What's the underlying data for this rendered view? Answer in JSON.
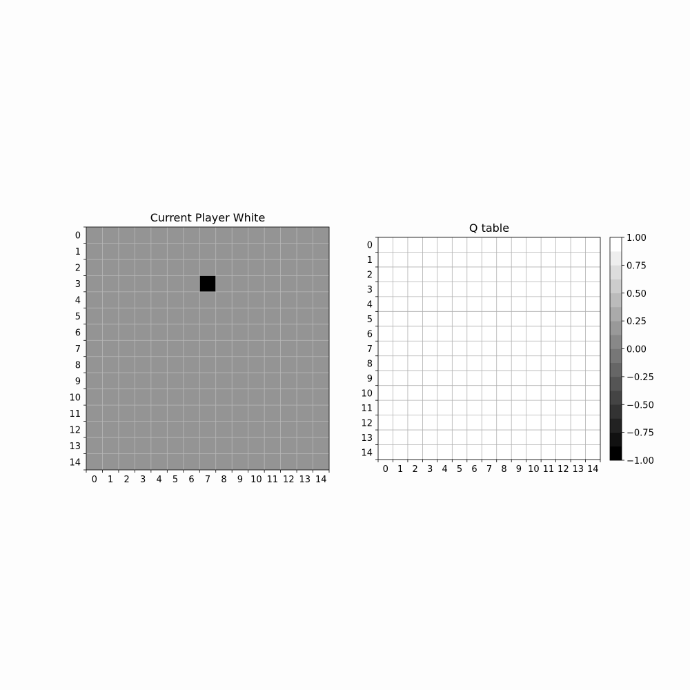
{
  "chart_data": [
    {
      "type": "heatmap",
      "title": "Current Player White",
      "rows": 15,
      "cols": 15,
      "xticks": [
        "0",
        "1",
        "2",
        "3",
        "4",
        "5",
        "6",
        "7",
        "8",
        "9",
        "10",
        "11",
        "12",
        "13",
        "14"
      ],
      "yticks": [
        "0",
        "1",
        "2",
        "3",
        "4",
        "5",
        "6",
        "7",
        "8",
        "9",
        "10",
        "11",
        "12",
        "13",
        "14"
      ],
      "background_value": 0,
      "background_color": "#949494",
      "stones": [
        {
          "row": 3,
          "col": 7,
          "color": "#000000"
        }
      ],
      "grid": true,
      "grid_color": "#b8b8b8"
    },
    {
      "type": "heatmap",
      "title": "Q table",
      "rows": 15,
      "cols": 15,
      "xticks": [
        "0",
        "1",
        "2",
        "3",
        "4",
        "5",
        "6",
        "7",
        "8",
        "9",
        "10",
        "11",
        "12",
        "13",
        "14"
      ],
      "yticks": [
        "0",
        "1",
        "2",
        "3",
        "4",
        "5",
        "6",
        "7",
        "8",
        "9",
        "10",
        "11",
        "12",
        "13",
        "14"
      ],
      "cell_value": 1.0,
      "cell_color": "#ffffff",
      "grid": true,
      "grid_color": "#b0b0b0",
      "colorbar": {
        "vmin": -1.0,
        "vmax": 1.0,
        "levels": 16,
        "colormap": "gray",
        "ticks": [
          "1.00",
          "0.75",
          "0.50",
          "0.25",
          "0.00",
          "−0.25",
          "−0.50",
          "−0.75",
          "−1.00"
        ],
        "tick_values": [
          1.0,
          0.75,
          0.5,
          0.25,
          0.0,
          -0.25,
          -0.5,
          -0.75,
          -1.0
        ]
      }
    }
  ]
}
